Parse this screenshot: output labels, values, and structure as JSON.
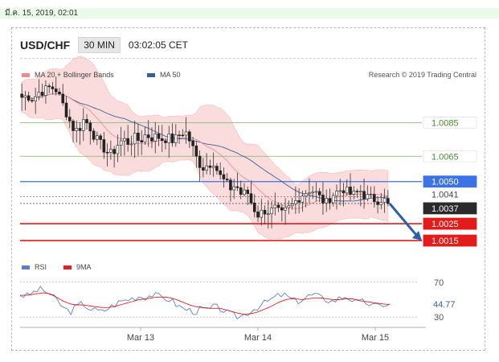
{
  "date_line": "มี.ค. 15, 2019, 02:01",
  "header": {
    "pair": "USD/CHF",
    "timeframe": "30 MIN",
    "time": "03:02:05 CET"
  },
  "credit": "Research © 2019 Trading Central",
  "legend": {
    "main": [
      {
        "label": "MA 20 + Bollinger Bands",
        "color": "#f08c8c"
      },
      {
        "label": "MA 50",
        "color": "#3a5e9a"
      }
    ],
    "rsi": [
      {
        "label": "RSI",
        "color": "#5b7fcf"
      },
      {
        "label": "9MA",
        "color": "#e02020"
      }
    ]
  },
  "chart_data": {
    "type": "candlestick",
    "x_ticks": [
      "Mar 13",
      "Mar 14",
      "Mar 15"
    ],
    "price": {
      "ylim": [
        1.0005,
        1.011
      ],
      "levels": [
        {
          "value": 1.0085,
          "label": "1.0085",
          "kind": "resistance",
          "color": "#7bb661"
        },
        {
          "value": 1.0065,
          "label": "1.0065",
          "kind": "resistance",
          "color": "#7bb661"
        },
        {
          "value": 1.005,
          "label": "1.0050",
          "kind": "pivot",
          "color": "#3b73e6"
        },
        {
          "value": 1.0041,
          "label": "1.0041",
          "kind": "previous-high",
          "color": "#888888"
        },
        {
          "value": 1.0037,
          "label": "1.0037",
          "kind": "last-price",
          "color": "#222222"
        },
        {
          "value": 1.0025,
          "label": "1.0025",
          "kind": "support",
          "color": "#e31b1b"
        },
        {
          "value": 1.0015,
          "label": "1.0015",
          "kind": "support",
          "color": "#e31b1b"
        }
      ],
      "close_path": [
        1.01,
        1.0101,
        1.0099,
        1.0103,
        1.0104,
        1.0106,
        1.0105,
        1.0098,
        1.009,
        1.0082,
        1.008,
        1.0087,
        1.0083,
        1.0076,
        1.0072,
        1.0068,
        1.0066,
        1.0072,
        1.0075,
        1.0073,
        1.0076,
        1.0074,
        1.0078,
        1.0076,
        1.0077,
        1.0075,
        1.0076,
        1.0074,
        1.0078,
        1.008,
        1.0073,
        1.0064,
        1.0058,
        1.006,
        1.0062,
        1.0054,
        1.005,
        1.0046,
        1.0048,
        1.0042,
        1.0044,
        1.0035,
        1.003,
        1.0033,
        1.0032,
        1.0034,
        1.003,
        1.0033,
        1.0036,
        1.004,
        1.0043,
        1.0045,
        1.0044,
        1.004,
        1.0037,
        1.0042,
        1.0044,
        1.0046,
        1.0043,
        1.0042,
        1.0045,
        1.0041,
        1.004,
        1.0039,
        1.004,
        1.0037
      ]
    },
    "rsi": {
      "ylim": [
        20,
        80
      ],
      "ticks": [
        {
          "value": 70,
          "label": "70"
        },
        {
          "value": 30,
          "label": "30"
        }
      ],
      "current": {
        "value": 44.77,
        "label": "44.77"
      },
      "rsi_path": [
        56,
        54,
        58,
        62,
        60,
        55,
        48,
        40,
        36,
        42,
        46,
        40,
        38,
        36,
        40,
        44,
        48,
        50,
        52,
        54,
        53,
        56,
        54,
        52,
        50,
        44,
        40,
        38,
        36,
        40,
        38,
        42,
        40,
        35,
        32,
        30,
        34,
        38,
        42,
        46,
        50,
        54,
        56,
        52,
        48,
        50,
        54,
        56,
        52,
        50,
        48,
        52,
        54,
        50,
        46,
        48,
        44,
        42,
        45,
        44
      ],
      "ma_path": [
        55,
        55,
        56,
        57,
        58,
        56,
        52,
        48,
        45,
        44,
        44,
        43,
        42,
        41,
        41,
        42,
        44,
        46,
        48,
        50,
        51,
        52,
        53,
        53,
        52,
        50,
        47,
        44,
        42,
        41,
        40,
        40,
        40,
        38,
        36,
        34,
        33,
        34,
        36,
        39,
        42,
        46,
        49,
        51,
        51,
        50,
        51,
        52,
        52,
        51,
        50,
        50,
        51,
        51,
        49,
        48,
        47,
        46,
        45,
        44.5
      ]
    }
  }
}
